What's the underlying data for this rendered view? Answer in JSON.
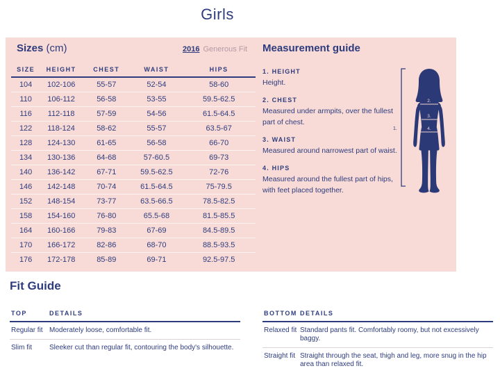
{
  "page": {
    "title": "Girls"
  },
  "colors": {
    "panel_pink": "#f8dbd6",
    "navy": "#2e3c7e",
    "muted_mauve": "#b49aa5"
  },
  "sizes_panel": {
    "heading": "Sizes",
    "heading_unit": "(cm)",
    "year_link": "2016",
    "fit_label": "Generous Fit",
    "table": {
      "columns": [
        "SIZE",
        "HEIGHT",
        "CHEST",
        "WAIST",
        "HIPS"
      ],
      "rows": [
        [
          "104",
          "102-106",
          "55-57",
          "52-54",
          "58-60"
        ],
        [
          "110",
          "106-112",
          "56-58",
          "53-55",
          "59.5-62.5"
        ],
        [
          "116",
          "112-118",
          "57-59",
          "54-56",
          "61.5-64.5"
        ],
        [
          "122",
          "118-124",
          "58-62",
          "55-57",
          "63.5-67"
        ],
        [
          "128",
          "124-130",
          "61-65",
          "56-58",
          "66-70"
        ],
        [
          "134",
          "130-136",
          "64-68",
          "57-60.5",
          "69-73"
        ],
        [
          "140",
          "136-142",
          "67-71",
          "59.5-62.5",
          "72-76"
        ],
        [
          "146",
          "142-148",
          "70-74",
          "61.5-64.5",
          "75-79.5"
        ],
        [
          "152",
          "148-154",
          "73-77",
          "63.5-66.5",
          "78.5-82.5"
        ],
        [
          "158",
          "154-160",
          "76-80",
          "65.5-68",
          "81.5-85.5"
        ],
        [
          "164",
          "160-166",
          "79-83",
          "67-69",
          "84.5-89.5"
        ],
        [
          "170",
          "166-172",
          "82-86",
          "68-70",
          "88.5-93.5"
        ],
        [
          "176",
          "172-178",
          "85-89",
          "69-71",
          "92.5-97.5"
        ]
      ]
    }
  },
  "measurement_guide": {
    "heading": "Measurement guide",
    "items": [
      {
        "label": "1. HEIGHT",
        "text": "Height."
      },
      {
        "label": "2. CHEST",
        "text": "Measured under armpits, over the fullest part of chest."
      },
      {
        "label": "3. WAIST",
        "text": "Measured around narrowest part of waist."
      },
      {
        "label": "4. HIPS",
        "text": "Measured around the fullest part of hips, with feet placed together."
      }
    ],
    "figure_labels": {
      "height": "1.",
      "chest": "2.",
      "waist": "3.",
      "hips": "4."
    }
  },
  "fit_guide": {
    "heading": "Fit Guide",
    "top_table": {
      "columns": [
        "TOP",
        "DETAILS"
      ],
      "rows": [
        [
          "Regular fit",
          "Moderately loose, comfortable fit."
        ],
        [
          "Slim fit",
          "Sleeker cut than regular fit, contouring the body's silhouette."
        ]
      ]
    },
    "bottom_table": {
      "columns": [
        "BOTTOM",
        "DETAILS"
      ],
      "rows": [
        [
          "Relaxed fit",
          "Standard pants fit. Comfortably roomy, but not excessively baggy."
        ],
        [
          "Straight fit",
          "Straight through the seat, thigh and leg, more snug in the hip area than relaxed fit."
        ]
      ]
    }
  }
}
